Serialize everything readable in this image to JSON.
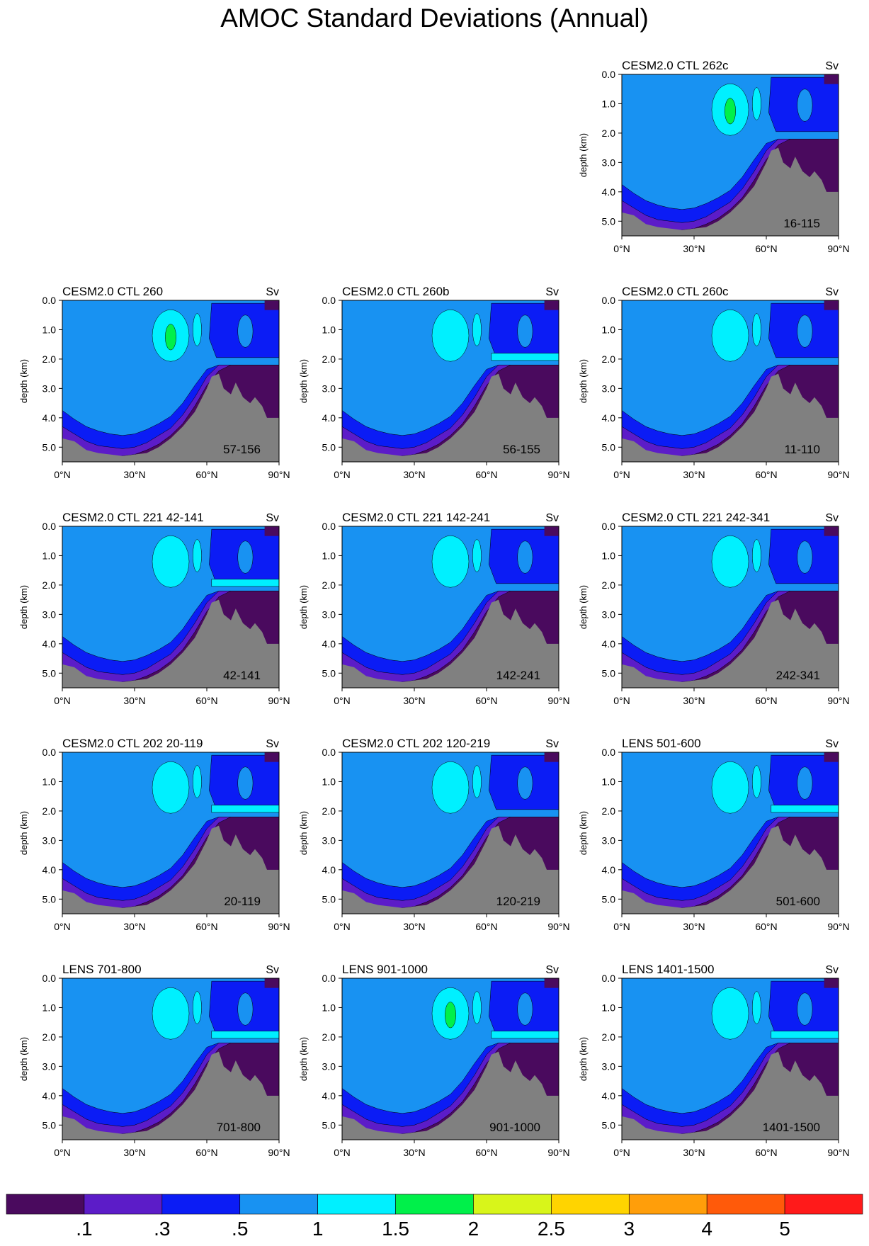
{
  "title": "AMOC Standard Deviations (Annual)",
  "colors": {
    "levels": [
      "#4a0a5e",
      "#5c1cc8",
      "#0b1cf5",
      "#1892f2",
      "#00f0ff",
      "#00f04a",
      "#d8f51a",
      "#ffd400",
      "#ff9e0a",
      "#ff5a0a",
      "#ff1a1a"
    ],
    "land": "#808080"
  },
  "chart_data": {
    "type": "heatmap",
    "ylabel": "depth (km)",
    "unit": "Sv",
    "xticks": [
      "0°N",
      "30°N",
      "60°N",
      "90°N"
    ],
    "yticks": [
      "0.0",
      "1.0",
      "2.0",
      "3.0",
      "4.0",
      "5.0"
    ],
    "xlim": [
      0,
      90
    ],
    "ylim": [
      0,
      5.5
    ],
    "colorbar": {
      "labels": [
        ".1",
        ".3",
        ".5",
        "1",
        "1.5",
        "2",
        "2.5",
        "3",
        "4",
        "5"
      ],
      "levels": [
        0.1,
        0.3,
        0.5,
        1,
        1.5,
        2,
        2.5,
        3,
        4,
        5
      ]
    },
    "panels": [
      {
        "title": "CESM2.0 CTL 262c",
        "period": "16-115",
        "row": 0,
        "col": 2,
        "green": true,
        "band": false
      },
      {
        "title": "CESM2.0 CTL 260",
        "period": "57-156",
        "row": 1,
        "col": 0,
        "green": true,
        "band": false
      },
      {
        "title": "CESM2.0 CTL 260b",
        "period": "56-155",
        "row": 1,
        "col": 1,
        "green": false,
        "band": true
      },
      {
        "title": "CESM2.0 CTL 260c",
        "period": "11-110",
        "row": 1,
        "col": 2,
        "green": false,
        "band": false
      },
      {
        "title": "CESM2.0 CTL 221 42-141",
        "period": "42-141",
        "row": 2,
        "col": 0,
        "green": false,
        "band": true
      },
      {
        "title": "CESM2.0 CTL 221 142-241",
        "period": "142-241",
        "row": 2,
        "col": 1,
        "green": false,
        "band": false
      },
      {
        "title": "CESM2.0 CTL 221 242-341",
        "period": "242-341",
        "row": 2,
        "col": 2,
        "green": false,
        "band": false
      },
      {
        "title": "CESM2.0 CTL 202 20-119",
        "period": "20-119",
        "row": 3,
        "col": 0,
        "green": false,
        "band": true
      },
      {
        "title": "CESM2.0 CTL 202 120-219",
        "period": "120-219",
        "row": 3,
        "col": 1,
        "green": false,
        "band": false
      },
      {
        "title": "LENS 501-600",
        "period": "501-600",
        "row": 3,
        "col": 2,
        "green": false,
        "band": true
      },
      {
        "title": "LENS 701-800",
        "period": "701-800",
        "row": 4,
        "col": 0,
        "green": false,
        "band": true
      },
      {
        "title": "LENS 901-1000",
        "period": "901-1000",
        "row": 4,
        "col": 1,
        "green": true,
        "band": true
      },
      {
        "title": "LENS 1401-1500",
        "period": "1401-1500",
        "row": 4,
        "col": 2,
        "green": false,
        "band": true
      }
    ]
  }
}
